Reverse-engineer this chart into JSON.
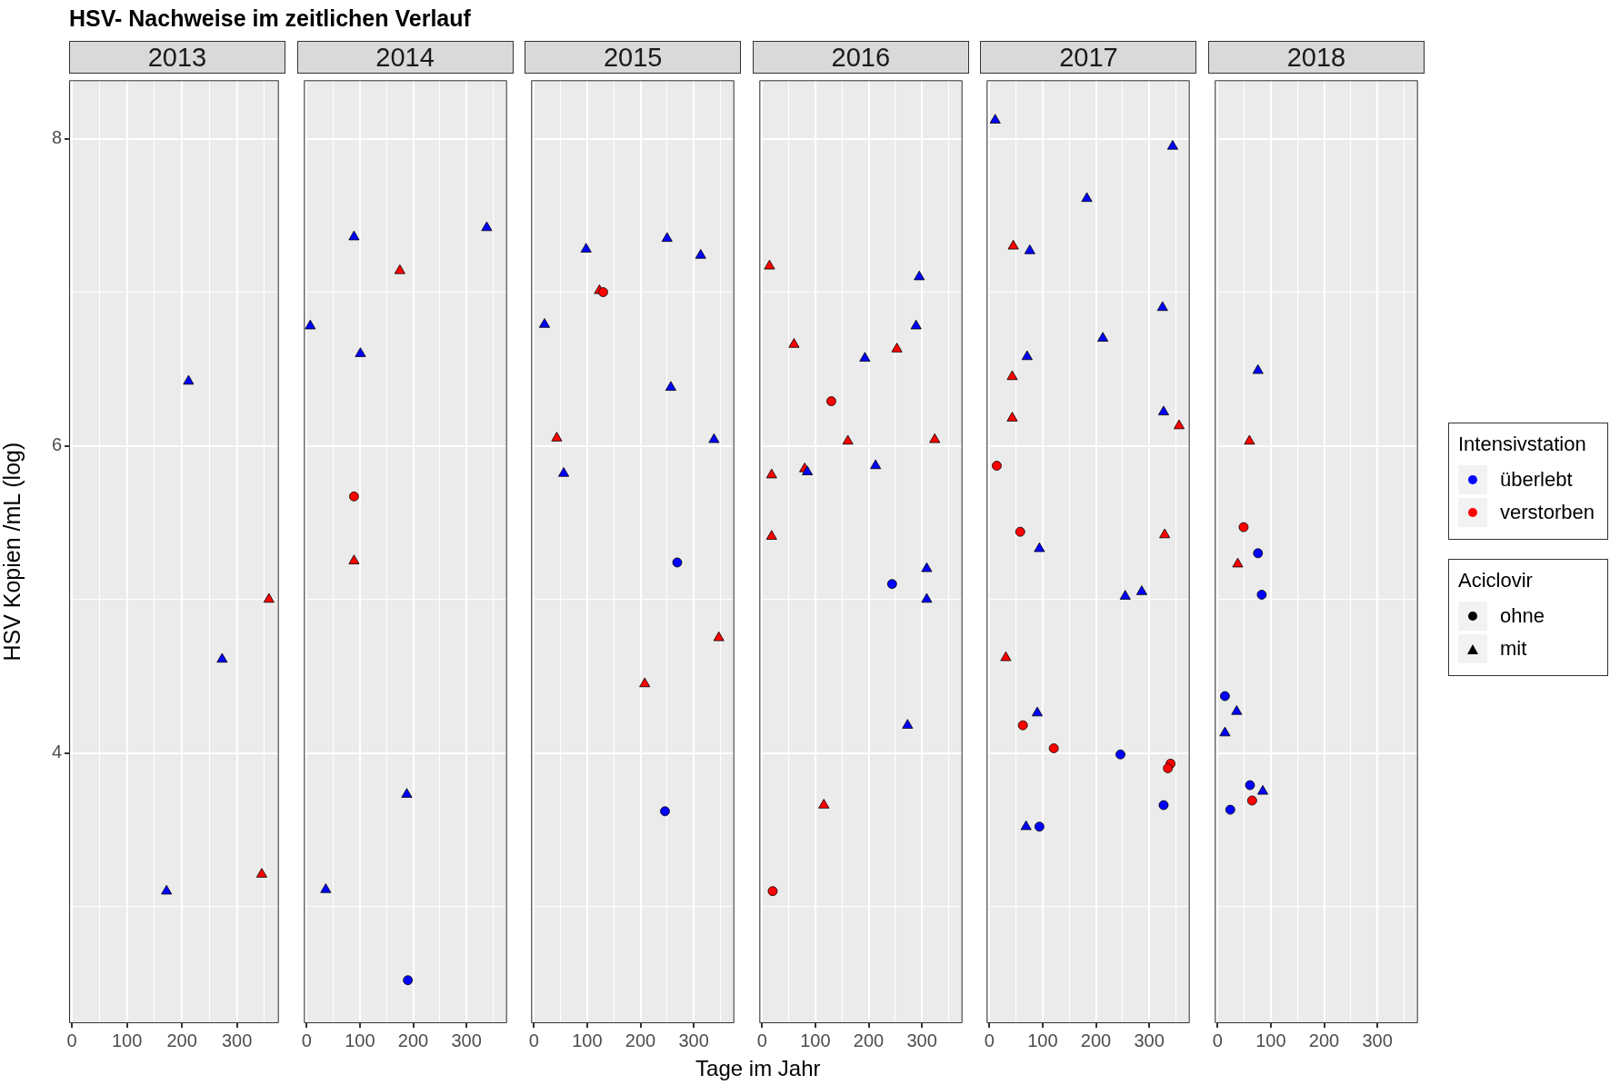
{
  "chart_data": [
    {
      "type": "scatter",
      "title": "2013",
      "ylabel": "HSV Kopien /mL (log)",
      "xlim": [
        -5,
        376
      ],
      "ylim": [
        2.24,
        8.38
      ],
      "xticks": [
        0,
        {
          "value": 50,
          "label": null
        },
        100,
        {
          "value": 150,
          "label": null
        },
        200,
        {
          "value": 250,
          "label": null
        },
        300,
        {
          "value": 350,
          "label": null
        }
      ],
      "yticks": [
        {
          "value": 3,
          "label": null
        },
        4,
        {
          "value": 5,
          "label": null
        },
        6,
        {
          "value": 7,
          "label": null
        },
        8
      ],
      "grid": true,
      "series": [
        {
          "color": "#0000ff",
          "marker": "triangle",
          "x": [
            212,
            273,
            172
          ],
          "values": [
            6.42,
            4.61,
            3.1
          ]
        },
        {
          "color": "#ff0000",
          "marker": "triangle",
          "x": [
            358,
            345
          ],
          "values": [
            5.0,
            3.21
          ]
        }
      ]
    },
    {
      "type": "scatter",
      "title": "2014",
      "tick_labels": "x",
      "xlim": [
        -5,
        376
      ],
      "ylim": [
        2.24,
        8.38
      ],
      "xticks": [
        0,
        {
          "value": 50,
          "label": null
        },
        100,
        {
          "value": 150,
          "label": null
        },
        200,
        {
          "value": 250,
          "label": null
        },
        300,
        {
          "value": 350,
          "label": null
        }
      ],
      "yticks": [
        {
          "value": 3,
          "label": null
        },
        4,
        {
          "value": 5,
          "label": null
        },
        6,
        {
          "value": 7,
          "label": null
        },
        8
      ],
      "grid": true,
      "series": [
        {
          "color": "#0000ff",
          "marker": "circle",
          "x": [
            190
          ],
          "values": [
            2.52
          ]
        },
        {
          "color": "#0000ff",
          "marker": "triangle",
          "x": [
            89,
            7,
            101,
            338,
            188,
            36
          ],
          "values": [
            7.36,
            6.78,
            6.6,
            7.42,
            3.73,
            3.11
          ]
        },
        {
          "color": "#ff0000",
          "marker": "circle",
          "x": [
            89
          ],
          "values": [
            5.67
          ]
        },
        {
          "color": "#ff0000",
          "marker": "triangle",
          "x": [
            175,
            89
          ],
          "values": [
            7.14,
            5.25
          ]
        }
      ]
    },
    {
      "type": "scatter",
      "title": "2015",
      "tick_labels": "x",
      "xlim": [
        -5,
        376
      ],
      "ylim": [
        2.24,
        8.38
      ],
      "xticks": [
        0,
        {
          "value": 50,
          "label": null
        },
        100,
        {
          "value": 150,
          "label": null
        },
        200,
        {
          "value": 250,
          "label": null
        },
        300,
        {
          "value": 350,
          "label": null
        }
      ],
      "yticks": [
        {
          "value": 3,
          "label": null
        },
        4,
        {
          "value": 5,
          "label": null
        },
        6,
        {
          "value": 7,
          "label": null
        },
        8
      ],
      "grid": true,
      "series": [
        {
          "color": "#0000ff",
          "marker": "circle",
          "x": [
            269,
            246
          ],
          "values": [
            5.24,
            3.62
          ]
        },
        {
          "color": "#0000ff",
          "marker": "triangle",
          "x": [
            20,
            98,
            250,
            313,
            257,
            338,
            56
          ],
          "values": [
            6.79,
            7.28,
            7.35,
            7.24,
            6.38,
            6.04,
            5.82
          ]
        },
        {
          "color": "#ff0000",
          "marker": "circle",
          "x": [
            130
          ],
          "values": [
            7.0
          ]
        },
        {
          "color": "#ff0000",
          "marker": "triangle",
          "x": [
            123,
            43,
            208,
            347
          ],
          "values": [
            7.01,
            6.05,
            4.45,
            4.75
          ]
        }
      ]
    },
    {
      "type": "scatter",
      "title": "2016",
      "xlabel": "Tage im Jahr",
      "tick_labels": "x",
      "xlim": [
        -5,
        376
      ],
      "ylim": [
        2.24,
        8.38
      ],
      "xticks": [
        0,
        {
          "value": 50,
          "label": null
        },
        100,
        {
          "value": 150,
          "label": null
        },
        200,
        {
          "value": 250,
          "label": null
        },
        300,
        {
          "value": 350,
          "label": null
        }
      ],
      "yticks": [
        {
          "value": 3,
          "label": null
        },
        4,
        {
          "value": 5,
          "label": null
        },
        6,
        {
          "value": 7,
          "label": null
        },
        8
      ],
      "grid": true,
      "series": [
        {
          "color": "#0000ff",
          "marker": "circle",
          "x": [
            244
          ],
          "values": [
            5.1
          ]
        },
        {
          "color": "#0000ff",
          "marker": "triangle",
          "x": [
            85,
            193,
            213,
            295,
            289,
            309,
            309,
            273
          ],
          "values": [
            5.83,
            6.57,
            5.87,
            7.1,
            6.78,
            5.2,
            5.0,
            4.18
          ]
        },
        {
          "color": "#ff0000",
          "marker": "circle",
          "x": [
            130,
            20
          ],
          "values": [
            6.29,
            3.1
          ]
        },
        {
          "color": "#ff0000",
          "marker": "triangle",
          "x": [
            14,
            60,
            18,
            18,
            80,
            161,
            253,
            324,
            116
          ],
          "values": [
            7.17,
            6.66,
            5.81,
            5.41,
            5.85,
            6.03,
            6.63,
            6.04,
            3.66
          ]
        }
      ]
    },
    {
      "type": "scatter",
      "title": "2017",
      "tick_labels": "x",
      "xlim": [
        -5,
        376
      ],
      "ylim": [
        2.24,
        8.38
      ],
      "xticks": [
        0,
        {
          "value": 50,
          "label": null
        },
        100,
        {
          "value": 150,
          "label": null
        },
        200,
        {
          "value": 250,
          "label": null
        },
        300,
        {
          "value": 350,
          "label": null
        }
      ],
      "yticks": [
        {
          "value": 3,
          "label": null
        },
        4,
        {
          "value": 5,
          "label": null
        },
        6,
        {
          "value": 7,
          "label": null
        },
        8
      ],
      "grid": true,
      "series": [
        {
          "color": "#0000ff",
          "marker": "circle",
          "x": [
            246,
            327,
            94
          ],
          "values": [
            3.99,
            3.66,
            3.52
          ]
        },
        {
          "color": "#0000ff",
          "marker": "triangle",
          "x": [
            11,
            344,
            183,
            76,
            213,
            71,
            325,
            327,
            94,
            255,
            286,
            90,
            69
          ],
          "values": [
            8.12,
            7.95,
            7.61,
            7.27,
            6.7,
            6.58,
            6.9,
            6.22,
            5.33,
            5.02,
            5.05,
            4.26,
            3.52
          ]
        },
        {
          "color": "#ff0000",
          "marker": "circle",
          "x": [
            14,
            58,
            63,
            121,
            340,
            335
          ],
          "values": [
            5.87,
            5.44,
            4.18,
            4.03,
            3.93,
            3.9
          ]
        },
        {
          "color": "#ff0000",
          "marker": "triangle",
          "x": [
            45,
            43,
            43,
            356,
            329,
            31
          ],
          "values": [
            7.3,
            6.45,
            6.18,
            6.13,
            5.42,
            4.62
          ]
        }
      ]
    },
    {
      "type": "scatter",
      "title": "2018",
      "tick_labels": "x",
      "xlim": [
        -5,
        376
      ],
      "ylim": [
        2.24,
        8.38
      ],
      "xticks": [
        0,
        {
          "value": 50,
          "label": null
        },
        100,
        {
          "value": 150,
          "label": null
        },
        200,
        {
          "value": 250,
          "label": null
        },
        300,
        {
          "value": 350,
          "label": null
        }
      ],
      "yticks": [
        {
          "value": 3,
          "label": null
        },
        4,
        {
          "value": 5,
          "label": null
        },
        6,
        {
          "value": 7,
          "label": null
        },
        8
      ],
      "grid": true,
      "series": [
        {
          "color": "#0000ff",
          "marker": "circle",
          "x": [
            76,
            83,
            14,
            61,
            24
          ],
          "values": [
            5.3,
            5.03,
            4.37,
            3.79,
            3.63
          ]
        },
        {
          "color": "#0000ff",
          "marker": "triangle",
          "x": [
            76,
            36,
            14,
            85
          ],
          "values": [
            6.49,
            4.27,
            4.13,
            3.75
          ]
        },
        {
          "color": "#ff0000",
          "marker": "circle",
          "x": [
            49,
            65
          ],
          "values": [
            5.47,
            3.69
          ]
        },
        {
          "color": "#ff0000",
          "marker": "triangle",
          "x": [
            60,
            38
          ],
          "values": [
            6.03,
            5.23
          ]
        }
      ]
    },
    {
      "type": "other",
      "title": "HSV- Nachweise im zeitlichen Verlauf",
      "annotations": [
        "Intensivstation",
        "überlebt",
        "verstorben",
        "Aciclovir",
        "ohne",
        "mit"
      ],
      "colors": [
        "#0000ff",
        "#ff0000",
        "#000000",
        "#000000"
      ]
    }
  ]
}
